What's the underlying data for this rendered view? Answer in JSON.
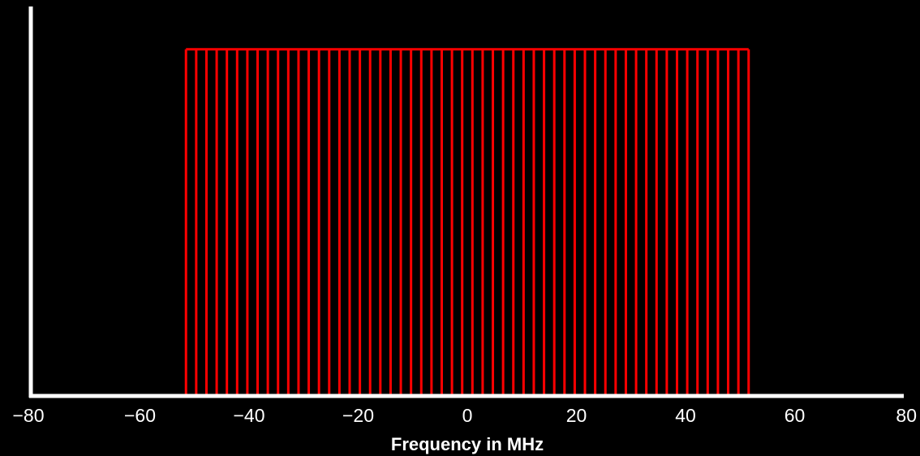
{
  "chart_data": {
    "type": "bar",
    "title": "",
    "xlabel": "Frequency in MHz",
    "ylabel": "",
    "xlim": [
      -80,
      80
    ],
    "ylim": [
      0,
      1.1
    ],
    "x_ticks": [
      -80,
      -60,
      -40,
      -20,
      0,
      20,
      40,
      60,
      80
    ],
    "x_tick_labels": [
      "−80",
      "−60",
      "−40",
      "−20",
      "0",
      "20",
      "40",
      "60",
      "80"
    ],
    "grid": false,
    "legend": "none",
    "subcarrier_spacing_mhz": 1.875,
    "subcarrier_x_start": -51.5625,
    "subcarrier_count": 56,
    "subcarrier_amplitude": 1,
    "colors": {
      "background": "#000000",
      "axes": "#ffffff",
      "series": "#ff0000"
    }
  }
}
